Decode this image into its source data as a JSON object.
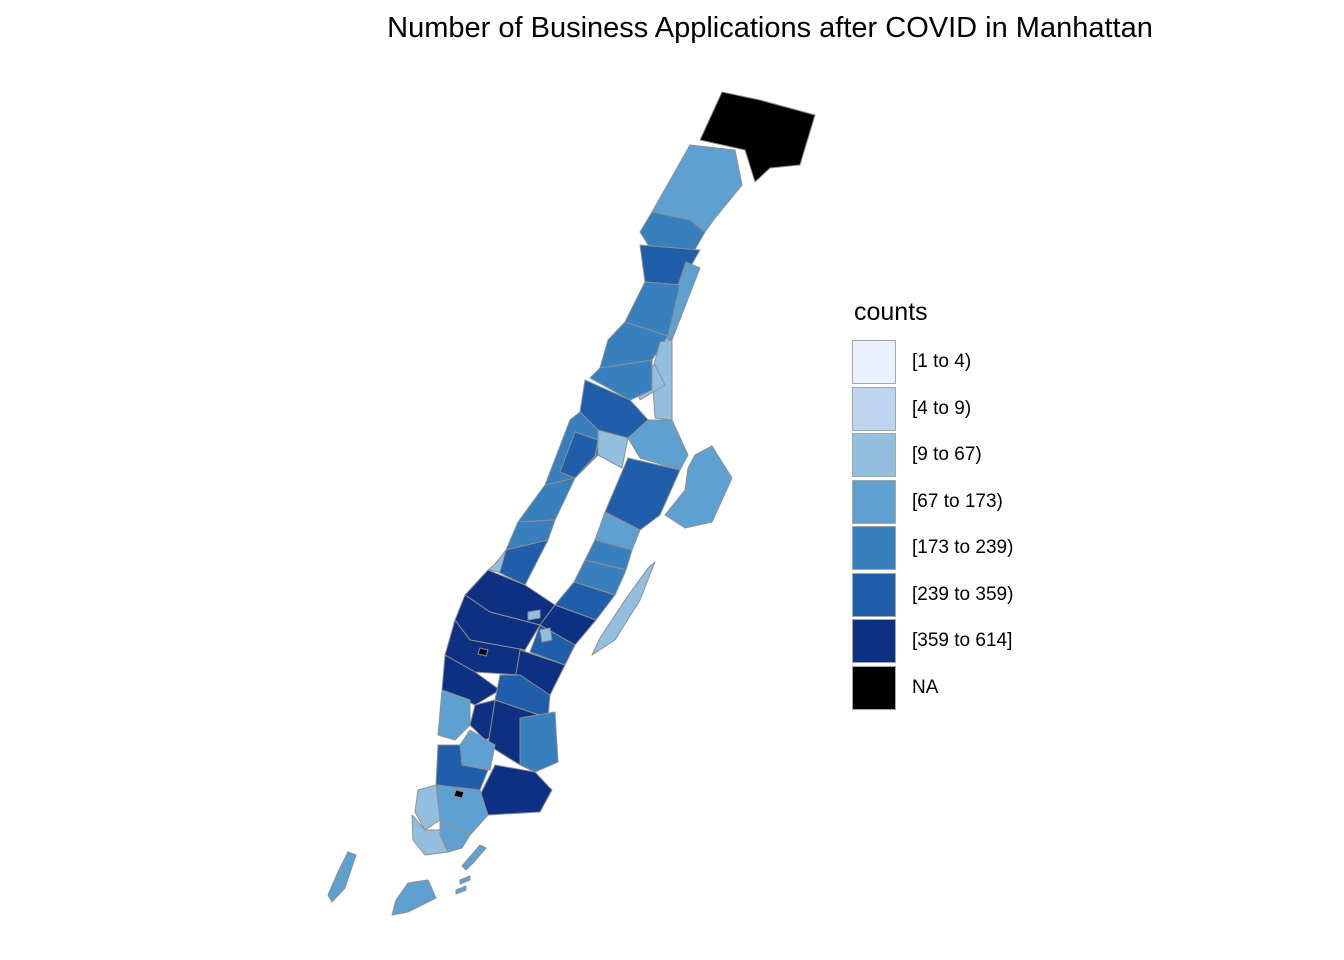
{
  "title": "Number of Business Applications after COVID in Manhattan",
  "legend": {
    "title": "counts",
    "classes": [
      {
        "label": "[1 to 4)",
        "color": "#eaf1fd"
      },
      {
        "label": "[4 to 9)",
        "color": "#bdd4ee"
      },
      {
        "label": "[9 to 67)",
        "color": "#93bfdf"
      },
      {
        "label": "[67 to 173)",
        "color": "#5ea1d0"
      },
      {
        "label": "[173 to 239)",
        "color": "#377fbd"
      },
      {
        "label": "[239 to 359)",
        "color": "#1f5ea9"
      },
      {
        "label": "[359 to 614]",
        "color": "#0c3183"
      },
      {
        "label": "NA",
        "color": "#000000"
      }
    ]
  }
}
